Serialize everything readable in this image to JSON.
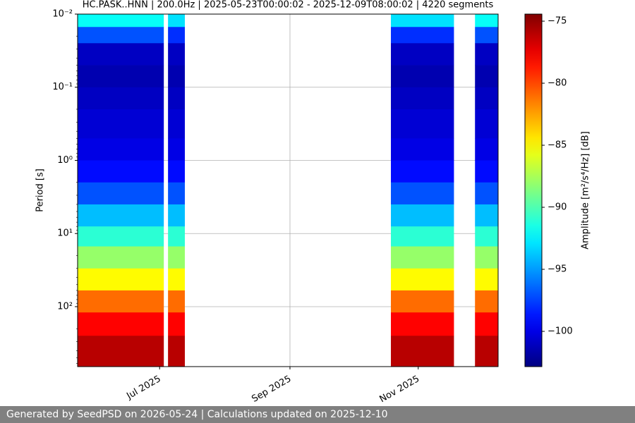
{
  "chart_data": {
    "type": "spectrogram",
    "title": "HC.PASK..HNN | 200.0Hz | 2025-05-23T00:00:02 - 2025-12-09T08:00:02 | 4220 segments",
    "ylabel": "Period [s]",
    "colorbar_label": "Amplitude [m²/s⁴/Hz] [dB]",
    "colormap": "jet",
    "ylog": true,
    "yinverted": true,
    "grid": true,
    "xlim": [
      "2025-05-23",
      "2025-12-09"
    ],
    "xticks": [
      {
        "value": "2025-07-01",
        "label": "Jul 2025"
      },
      {
        "value": "2025-09-01",
        "label": "Sep 2025"
      },
      {
        "value": "2025-11-01",
        "label": "Nov 2025"
      }
    ],
    "ylim": [
      0.01,
      660
    ],
    "yticks": [
      {
        "value": 0.01,
        "label": "10⁻²"
      },
      {
        "value": 0.1,
        "label": "10⁻¹"
      },
      {
        "value": 1,
        "label": "10⁰"
      },
      {
        "value": 10,
        "label": "10¹"
      },
      {
        "value": 100,
        "label": "10²"
      }
    ],
    "clim": [
      -102.84,
      -74.43
    ],
    "cticks": [
      {
        "value": -75,
        "label": "−75"
      },
      {
        "value": -80,
        "label": "−80"
      },
      {
        "value": -85,
        "label": "−85"
      },
      {
        "value": -90,
        "label": "−90"
      },
      {
        "value": -95,
        "label": "−95"
      },
      {
        "value": -100,
        "label": "−100"
      }
    ],
    "period_bins": [
      0.01,
      0.015,
      0.025,
      0.05,
      0.1,
      0.2,
      0.5,
      1,
      2,
      4,
      8,
      15,
      30,
      60,
      120,
      250,
      660
    ],
    "segments": [
      {
        "start": "2025-05-23",
        "end": "2025-07-03",
        "values": [
          -92,
          -97,
          -101,
          -101.5,
          -101,
          -100.5,
          -100,
          -99,
          -97,
          -94,
          -91,
          -88,
          -85,
          -81,
          -78,
          -76
        ]
      },
      {
        "start": "2025-07-05",
        "end": "2025-07-13",
        "values": [
          -93,
          -98,
          -101,
          -101.5,
          -101,
          -100.5,
          -100,
          -99,
          -97,
          -94,
          -91,
          -88,
          -85,
          -81,
          -78,
          -76
        ]
      },
      {
        "start": "2025-10-19",
        "end": "2025-11-18",
        "values": [
          -93,
          -98,
          -101,
          -101.5,
          -101,
          -100.5,
          -100,
          -99,
          -97,
          -94,
          -91,
          -88,
          -85,
          -81,
          -78,
          -76
        ]
      },
      {
        "start": "2025-11-28",
        "end": "2025-12-09",
        "values": [
          -92,
          -97,
          -101,
          -101.5,
          -101,
          -100.5,
          -100,
          -99,
          -97,
          -94,
          -91,
          -88,
          -85,
          -81,
          -78,
          -76
        ]
      }
    ]
  },
  "footer": "Generated by SeedPSD on 2026-05-24 | Calculations updated on 2025-12-10"
}
